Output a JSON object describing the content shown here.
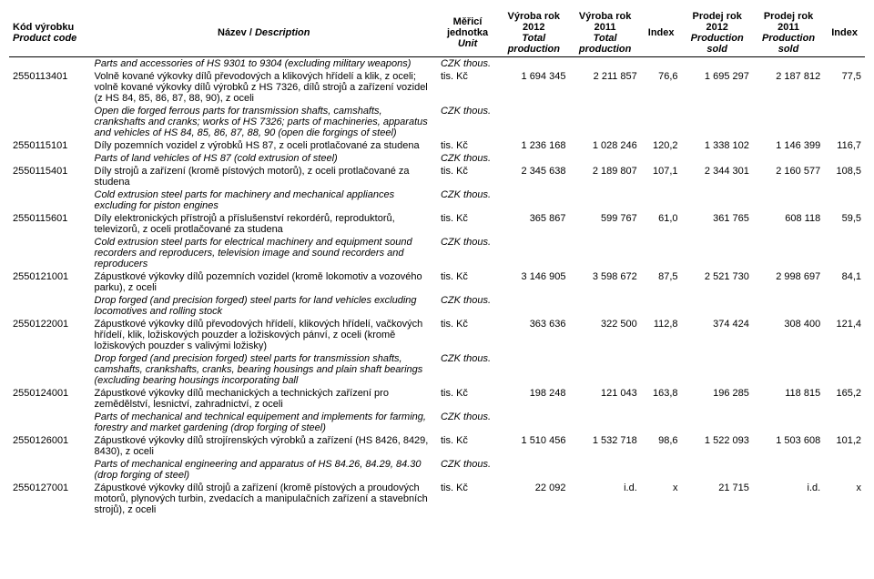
{
  "headers": {
    "code_cz": "Kód výrobku",
    "code_en": "Product code",
    "name_cz": "Název /",
    "name_en": "Description",
    "unit_cz": "Měřicí",
    "unit_cz2": "jednotka",
    "unit_en": "Unit",
    "prod2012_cz": "Výroba rok 2012",
    "prod2012_en": "Total production",
    "prod2011_cz": "Výroba rok 2011",
    "prod2011_en": "Total production",
    "index1": "Index",
    "sold2012_cz": "Prodej rok 2012",
    "sold2012_en": "Production sold",
    "sold2011_cz": "Prodej rok 2011",
    "sold2011_en": "Production sold",
    "index2": "Index"
  },
  "units": {
    "tis": "tis. Kč",
    "czk": "CZK thous."
  },
  "rows": [
    {
      "code": "",
      "desc_en": "Parts and accessories of HS 9301 to 9304 (excluding military weapons)",
      "unit": "CZK thous.",
      "italic": true
    },
    {
      "code": "2550113401",
      "desc_cz": "Volně kované výkovky dílů převodových a klikových hřídelí a klik, z oceli; volně kované výkovky dílů výrobků z HS 7326, dílů strojů a zařízení vozidel (z HS 84, 85, 86, 87, 88, 90), z oceli",
      "unit": "tis. Kč",
      "p2012": "1 694 345",
      "p2011": "2 211 857",
      "i1": "76,6",
      "s2012": "1 695 297",
      "s2011": "2 187 812",
      "i2": "77,5"
    },
    {
      "code": "",
      "desc_en": "Open die forged ferrous parts for transmission shafts, camshafts, crankshafts and cranks; works of HS 7326; parts of machineries, apparatus and vehicles of HS 84, 85, 86, 87, 88, 90 (open die forgings of steel)",
      "unit": "CZK thous.",
      "italic": true
    },
    {
      "code": "2550115101",
      "desc_cz": "Díly pozemních vozidel z výrobků HS 87, z oceli protlačované za studena",
      "unit": "tis. Kč",
      "p2012": "1 236 168",
      "p2011": "1 028 246",
      "i1": "120,2",
      "s2012": "1 338 102",
      "s2011": "1 146 399",
      "i2": "116,7"
    },
    {
      "code": "",
      "desc_en": "Parts of land vehicles of HS 87 (cold extrusion of steel)",
      "unit": "CZK thous.",
      "italic": true
    },
    {
      "code": "2550115401",
      "desc_cz": "Díly strojů a zařízení (kromě pístových motorů), z oceli protlačované za studena",
      "unit": "tis. Kč",
      "p2012": "2 345 638",
      "p2011": "2 189 807",
      "i1": "107,1",
      "s2012": "2 344 301",
      "s2011": "2 160 577",
      "i2": "108,5"
    },
    {
      "code": "",
      "desc_en": "Cold extrusion steel parts for machinery and mechanical appliances excluding for piston engines",
      "unit": "CZK thous.",
      "italic": true
    },
    {
      "code": "2550115601",
      "desc_cz": "Díly elektronických přístrojů a příslušenství rekordérů, reproduktorů, televizorů, z oceli protlačované za studena",
      "unit": "tis. Kč",
      "p2012": "365 867",
      "p2011": "599 767",
      "i1": "61,0",
      "s2012": "361 765",
      "s2011": "608 118",
      "i2": "59,5"
    },
    {
      "code": "",
      "desc_en": "Cold extrusion steel parts for electrical machinery and equipment sound recorders and reproducers, television image and sound recorders and reproducers",
      "unit": "CZK thous.",
      "italic": true
    },
    {
      "code": "2550121001",
      "desc_cz": "Zápustkové výkovky dílů pozemních vozidel (kromě lokomotiv a vozového parku), z oceli",
      "unit": "tis. Kč",
      "p2012": "3 146 905",
      "p2011": "3 598 672",
      "i1": "87,5",
      "s2012": "2 521 730",
      "s2011": "2 998 697",
      "i2": "84,1"
    },
    {
      "code": "",
      "desc_en": "Drop forged (and precision forged) steel parts for land vehicles excluding locomotives and rolling stock",
      "unit": "CZK thous.",
      "italic": true
    },
    {
      "code": "2550122001",
      "desc_cz": "Zápustkové výkovky dílů převodových hřídelí, klikových hřídelí, vačkových hřídelí, klik, ložiskových pouzder a ložiskových pánví, z oceli (kromě ložiskových pouzder s valivými ložisky)",
      "unit": "tis. Kč",
      "p2012": "363 636",
      "p2011": "322 500",
      "i1": "112,8",
      "s2012": "374 424",
      "s2011": "308 400",
      "i2": "121,4"
    },
    {
      "code": "",
      "desc_en": "Drop forged (and precision forged) steel parts for transmission shafts, camshafts, crankshafts, cranks, bearing housings and plain shaft bearings (excluding bearing housings incorporating ball",
      "unit": "CZK thous.",
      "italic": true
    },
    {
      "code": "2550124001",
      "desc_cz": "Zápustkové výkovky dílů mechanických a technických zařízení pro zemědělství, lesnictví, zahradnictví, z oceli",
      "unit": "tis. Kč",
      "p2012": "198 248",
      "p2011": "121 043",
      "i1": "163,8",
      "s2012": "196 285",
      "s2011": "118 815",
      "i2": "165,2"
    },
    {
      "code": "",
      "desc_en": "Parts of mechanical and technical equipement and implements for farming, forestry and market gardening (drop forging of steel)",
      "unit": "CZK thous.",
      "italic": true
    },
    {
      "code": "2550126001",
      "desc_cz": "Zápustkové výkovky dílů strojírenských výrobků a zařízení (HS 8426, 8429, 8430), z oceli",
      "unit": "tis. Kč",
      "p2012": "1 510 456",
      "p2011": "1 532 718",
      "i1": "98,6",
      "s2012": "1 522 093",
      "s2011": "1 503 608",
      "i2": "101,2"
    },
    {
      "code": "",
      "desc_en": "Parts of mechanical engineering and apparatus of HS 84.26, 84.29, 84.30 (drop forging of steel)",
      "unit": "CZK thous.",
      "italic": true
    },
    {
      "code": "2550127001",
      "desc_cz": "Zápustkové výkovky dílů strojů a zařízení (kromě pístových a proudových motorů, plynových turbin, zvedacích a manipulačních zařízení a stavebních strojů), z oceli",
      "unit": "tis. Kč",
      "p2012": "22 092",
      "p2011": "i.d.",
      "i1": "x",
      "s2012": "21 715",
      "s2011": "i.d.",
      "i2": "x"
    }
  ]
}
